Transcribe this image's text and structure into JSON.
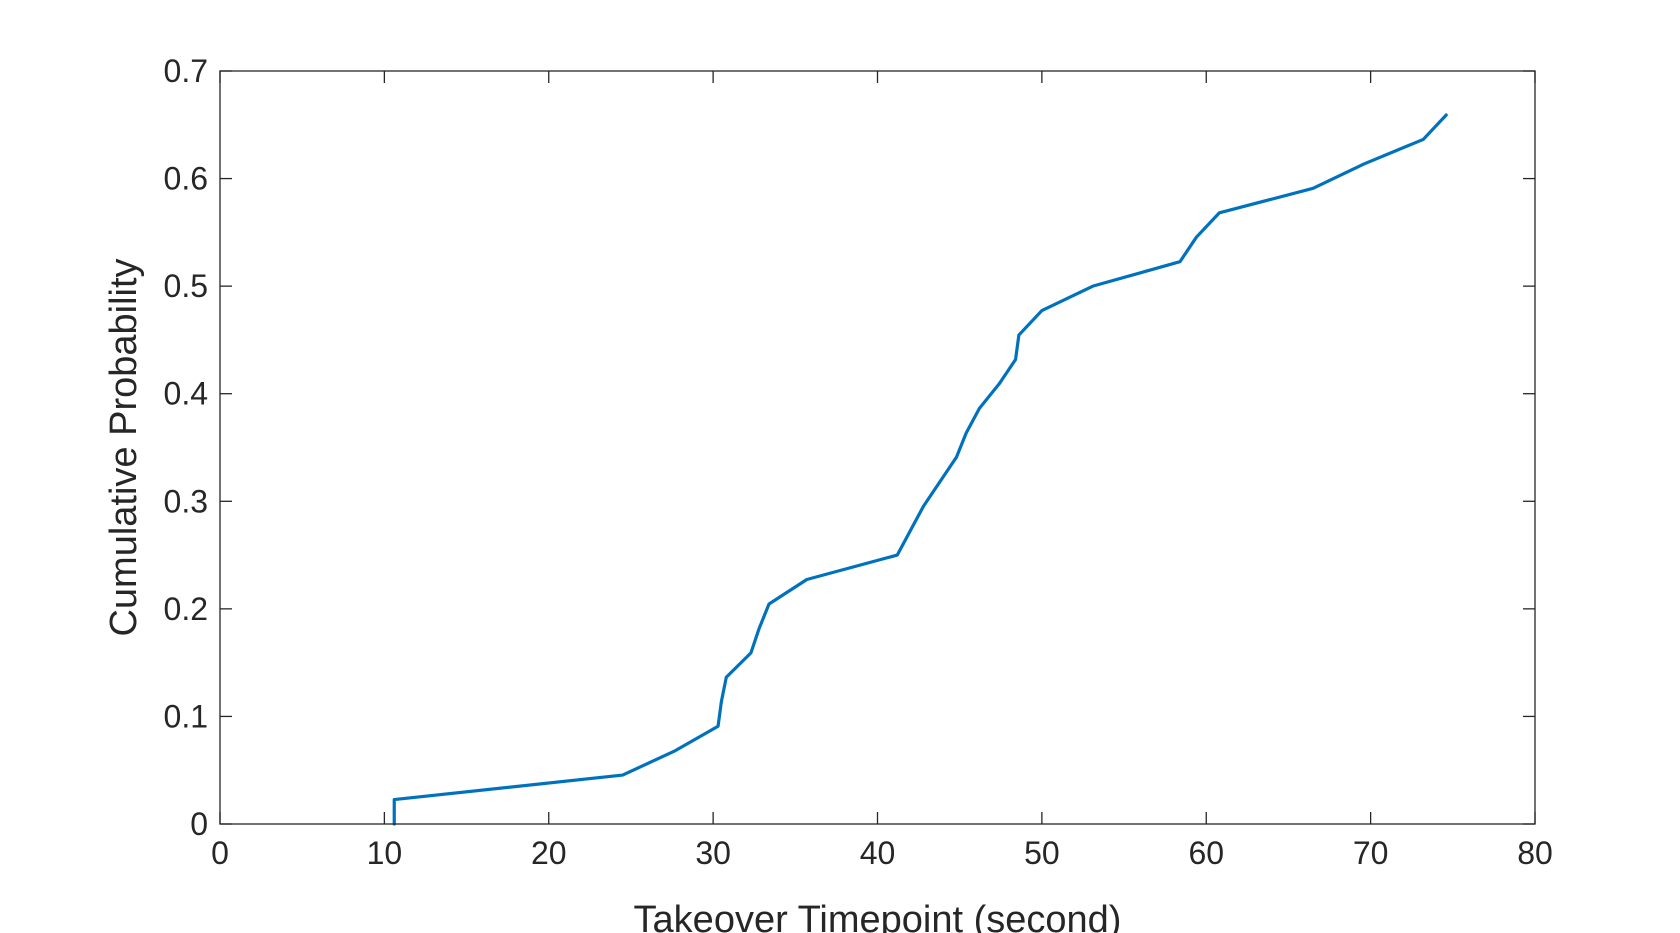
{
  "chart_data": {
    "type": "line",
    "title": "",
    "xlabel": "Takeover Timepoint (second)",
    "ylabel": "Cumulative Probability",
    "xlim": [
      0,
      80
    ],
    "ylim": [
      0,
      0.7
    ],
    "xticks": [
      0,
      10,
      20,
      30,
      40,
      50,
      60,
      70,
      80
    ],
    "yticks": [
      0,
      0.1,
      0.2,
      0.3,
      0.4,
      0.5,
      0.6,
      0.7
    ],
    "xtick_labels": [
      "0",
      "10",
      "20",
      "30",
      "40",
      "50",
      "60",
      "70",
      "80"
    ],
    "ytick_labels": [
      "0",
      "0.1",
      "0.2",
      "0.3",
      "0.4",
      "0.5",
      "0.6",
      "0.7"
    ],
    "grid": false,
    "series": [
      {
        "color": "#0072BD",
        "x": [
          10.6,
          10.6,
          24.5,
          27.7,
          30.3,
          30.5,
          30.8,
          32.3,
          32.8,
          33.4,
          35.7,
          41.2,
          42.8,
          44.8,
          45.4,
          46.2,
          47.4,
          48.4,
          48.6,
          50.0,
          53.1,
          58.4,
          59.4,
          60.8,
          66.5,
          69.6,
          73.2,
          74.6
        ],
        "y": [
          0.0,
          0.0227,
          0.0455,
          0.0682,
          0.0909,
          0.1136,
          0.1364,
          0.1591,
          0.1818,
          0.2045,
          0.2273,
          0.25,
          0.2955,
          0.3409,
          0.3636,
          0.3864,
          0.4091,
          0.4318,
          0.4545,
          0.4773,
          0.5,
          0.5227,
          0.5455,
          0.5682,
          0.5909,
          0.6136,
          0.6364,
          0.6591
        ]
      }
    ]
  }
}
